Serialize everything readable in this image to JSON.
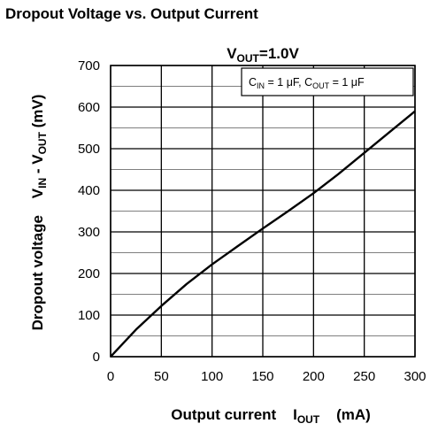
{
  "chart_data": {
    "type": "line",
    "title": "Dropout Voltage vs. Output Current",
    "condition": {
      "main": "V",
      "sub": "OUT",
      "rest": "=1.0V"
    },
    "annotation": {
      "c_in_main": "C",
      "c_in_sub": "IN",
      "c_in_rest": " = 1 μF, ",
      "c_out_main": "C",
      "c_out_sub": "OUT",
      "c_out_rest": " = 1 μF"
    },
    "xlabel": {
      "main": "Output current    I",
      "sub": "OUT",
      "rest": "    (mA)"
    },
    "ylabel": {
      "pre": "Dropout voltage    V",
      "sub1": "IN",
      "mid": " - V",
      "sub2": "OUT",
      "rest": " (mV)"
    },
    "xlim": [
      0,
      300
    ],
    "ylim": [
      0,
      700
    ],
    "xticks": [
      "0",
      "50",
      "100",
      "150",
      "200",
      "250",
      "300"
    ],
    "yticks": [
      "0",
      "100",
      "200",
      "300",
      "400",
      "500",
      "600",
      "700"
    ],
    "grid": true,
    "series": [
      {
        "x": [
          0,
          25,
          50,
          75,
          100,
          125,
          150,
          175,
          200,
          225,
          250,
          275,
          300
        ],
        "y": [
          0,
          65,
          122,
          175,
          222,
          265,
          308,
          350,
          393,
          440,
          490,
          540,
          590
        ]
      }
    ]
  }
}
